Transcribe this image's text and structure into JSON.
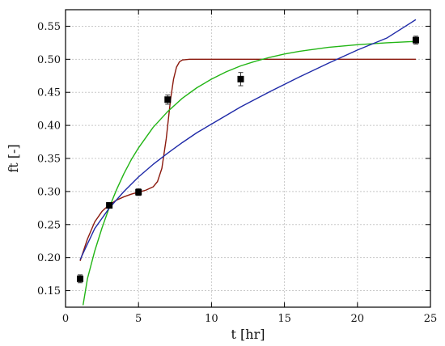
{
  "chart_data": {
    "type": "scatter",
    "xlabel": "t [hr]",
    "ylabel": "ft [-]",
    "xlim": [
      0,
      25
    ],
    "ylim": [
      0.125,
      0.575
    ],
    "xticks": [
      0,
      5,
      10,
      15,
      20,
      25
    ],
    "yticks": [
      0.15,
      0.2,
      0.25,
      0.3,
      0.35,
      0.4,
      0.45,
      0.5,
      0.55
    ],
    "grid": true,
    "legend": "none",
    "points": {
      "marker": "square",
      "color": "#000000",
      "x": [
        1,
        3,
        5,
        7,
        12,
        24
      ],
      "y": [
        0.168,
        0.279,
        0.299,
        0.439,
        0.47,
        0.529
      ],
      "yerr": [
        0.006,
        0.004,
        0.005,
        0.007,
        0.01,
        0.006
      ]
    },
    "series": [
      {
        "color": "#8b1a0e",
        "x": [
          1,
          1.5,
          2,
          2.5,
          3,
          3.5,
          4,
          4.5,
          5,
          5.5,
          6,
          6.3,
          6.6,
          6.9,
          7.0,
          7.1,
          7.2,
          7.4,
          7.6,
          7.8,
          8,
          8.5,
          9,
          10,
          12,
          15,
          20,
          24
        ],
        "y": [
          0.195,
          0.228,
          0.254,
          0.27,
          0.28,
          0.287,
          0.292,
          0.296,
          0.299,
          0.302,
          0.307,
          0.315,
          0.335,
          0.38,
          0.4,
          0.42,
          0.44,
          0.47,
          0.488,
          0.496,
          0.499,
          0.5,
          0.5,
          0.5,
          0.5,
          0.5,
          0.5,
          0.5
        ]
      },
      {
        "color": "#22b515",
        "x": [
          1.2,
          1.5,
          2,
          2.5,
          3,
          3.5,
          4,
          4.5,
          5,
          6,
          7,
          8,
          9,
          10,
          11,
          12,
          13,
          14,
          15,
          16,
          17,
          18,
          20,
          22,
          24
        ],
        "y": [
          0.128,
          0.168,
          0.21,
          0.245,
          0.276,
          0.303,
          0.327,
          0.348,
          0.366,
          0.397,
          0.421,
          0.441,
          0.457,
          0.47,
          0.481,
          0.49,
          0.497,
          0.503,
          0.508,
          0.512,
          0.515,
          0.518,
          0.522,
          0.525,
          0.527
        ]
      },
      {
        "color": "#1f2aa8",
        "x": [
          1,
          2,
          3,
          4,
          5,
          6,
          7,
          8,
          9,
          10,
          12,
          14,
          16,
          18,
          20,
          22,
          24
        ],
        "y": [
          0.197,
          0.244,
          0.275,
          0.3,
          0.322,
          0.341,
          0.358,
          0.374,
          0.389,
          0.402,
          0.428,
          0.451,
          0.473,
          0.494,
          0.514,
          0.532,
          0.56
        ]
      }
    ]
  }
}
